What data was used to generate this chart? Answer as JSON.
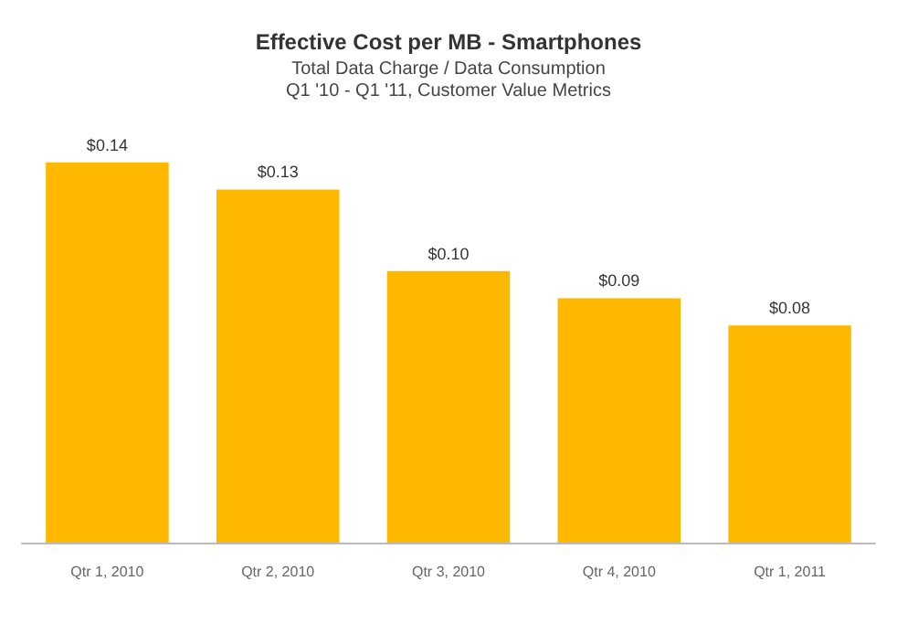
{
  "chart_data": {
    "type": "bar",
    "title": "Effective Cost per MB - Smartphones",
    "subtitle": "Total Data Charge / Data Consumption\nQ1 '10 - Q1 '11, Customer Value Metrics",
    "categories": [
      "Qtr 1, 2010",
      "Qtr 2, 2010",
      "Qtr 3, 2010",
      "Qtr 4, 2010",
      "Qtr 1, 2011"
    ],
    "values": [
      0.14,
      0.13,
      0.1,
      0.09,
      0.08
    ],
    "value_labels": [
      "$0.14",
      "$0.13",
      "$0.10",
      "$0.09",
      "$0.08"
    ],
    "color": "#ffb800"
  }
}
